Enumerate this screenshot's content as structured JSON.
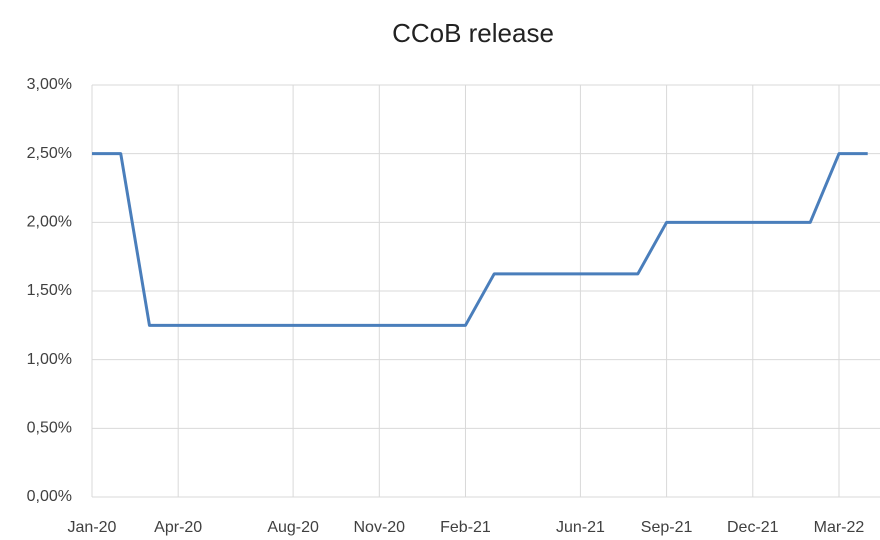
{
  "chart_data": {
    "type": "line",
    "title": "CCoB release",
    "categories": [
      "Jan-20",
      null,
      null,
      "Apr-20",
      null,
      null,
      null,
      "Aug-20",
      null,
      null,
      "Nov-20",
      null,
      null,
      "Feb-21",
      null,
      null,
      null,
      "Jun-21",
      null,
      null,
      "Sep-21",
      null,
      null,
      "Dec-21",
      null,
      null,
      "Mar-22",
      null
    ],
    "series": [
      {
        "name": "CCoB release",
        "color": "#4a7ebb",
        "values": [
          2.5,
          2.5,
          1.25,
          1.25,
          1.25,
          1.25,
          1.25,
          1.25,
          1.25,
          1.25,
          1.25,
          1.25,
          1.25,
          1.25,
          1.625,
          1.625,
          1.625,
          1.625,
          1.625,
          1.625,
          2.0,
          2.0,
          2.0,
          2.0,
          2.0,
          2.0,
          2.5,
          2.5
        ]
      }
    ],
    "ylim": [
      0,
      3
    ],
    "yticks": [
      {
        "value": 0,
        "label": "0,00%"
      },
      {
        "value": 0.5,
        "label": "0,50%"
      },
      {
        "value": 1,
        "label": "1,00%"
      },
      {
        "value": 1.5,
        "label": "1,50%"
      },
      {
        "value": 2,
        "label": "2,00%"
      },
      {
        "value": 2.5,
        "label": "2,50%"
      },
      {
        "value": 3,
        "label": "3,00%"
      }
    ],
    "grid": true
  }
}
